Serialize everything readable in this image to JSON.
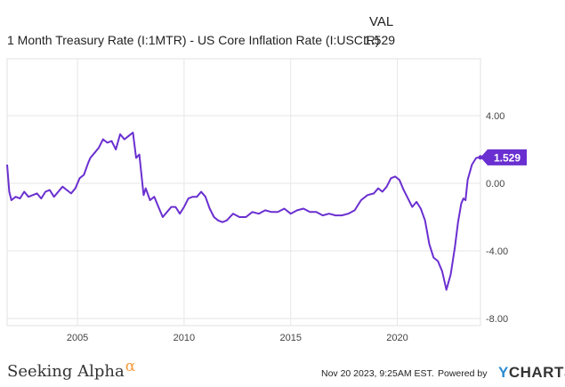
{
  "legend": {
    "header": "VAL",
    "series_name": "1 Month Treasury Rate (I:1MTR) - US Core Inflation Rate (I:USCIR)",
    "series_value": "1.529"
  },
  "colors": {
    "line": "#6a2fd0",
    "grid": "#e6e6e6",
    "axis_text": "#444444"
  },
  "chart_data": {
    "type": "line",
    "title": "1 Month Treasury Rate (I:1MTR) - US Core Inflation Rate (I:USCIR)",
    "xlabel": "",
    "ylabel": "",
    "xlim": [
      2001.7,
      2023.9
    ],
    "ylim": [
      -8,
      8
    ],
    "x_ticks": [
      2005,
      2010,
      2015,
      2020
    ],
    "x_tick_labels": [
      "2005",
      "2010",
      "2015",
      "2020"
    ],
    "y_ticks": [
      4,
      0,
      -4,
      -8
    ],
    "y_tick_labels": [
      "4.00",
      "0.00",
      "-4.00",
      "-8.00"
    ],
    "last_value_label": "1.529",
    "series": [
      {
        "name": "1 Month Treasury Rate (I:1MTR) - US Core Inflation Rate (I:USCIR)",
        "x": [
          2001.7,
          2001.8,
          2001.9,
          2002.1,
          2002.3,
          2002.5,
          2002.7,
          2002.9,
          2003.1,
          2003.3,
          2003.5,
          2003.7,
          2003.9,
          2004.1,
          2004.3,
          2004.5,
          2004.7,
          2004.9,
          2005.1,
          2005.3,
          2005.5,
          2005.6,
          2005.8,
          2006.0,
          2006.2,
          2006.4,
          2006.6,
          2006.8,
          2007.0,
          2007.2,
          2007.4,
          2007.6,
          2007.75,
          2007.9,
          2008.1,
          2008.2,
          2008.4,
          2008.6,
          2008.8,
          2009.0,
          2009.2,
          2009.4,
          2009.6,
          2009.8,
          2010.0,
          2010.2,
          2010.4,
          2010.6,
          2010.8,
          2011.0,
          2011.2,
          2011.4,
          2011.6,
          2011.8,
          2012.0,
          2012.3,
          2012.6,
          2012.9,
          2013.2,
          2013.5,
          2013.8,
          2014.1,
          2014.4,
          2014.7,
          2015.0,
          2015.3,
          2015.6,
          2015.9,
          2016.2,
          2016.5,
          2016.8,
          2017.1,
          2017.4,
          2017.7,
          2018.0,
          2018.3,
          2018.6,
          2018.9,
          2019.1,
          2019.3,
          2019.5,
          2019.7,
          2019.9,
          2020.1,
          2020.3,
          2020.5,
          2020.7,
          2020.9,
          2021.1,
          2021.3,
          2021.5,
          2021.7,
          2021.9,
          2022.1,
          2022.3,
          2022.5,
          2022.7,
          2022.85,
          2023.0,
          2023.1,
          2023.2,
          2023.3,
          2023.5,
          2023.7,
          2023.9
        ],
        "values": [
          1.1,
          -0.5,
          -1.0,
          -0.8,
          -0.9,
          -0.5,
          -0.8,
          -0.7,
          -0.6,
          -0.9,
          -0.5,
          -0.4,
          -0.8,
          -0.5,
          -0.2,
          -0.4,
          -0.6,
          -0.3,
          0.3,
          0.5,
          1.2,
          1.5,
          1.8,
          2.1,
          2.6,
          2.4,
          2.5,
          2.0,
          2.9,
          2.6,
          2.8,
          3.0,
          1.5,
          1.7,
          -0.7,
          -0.3,
          -1.0,
          -0.8,
          -1.4,
          -2.0,
          -1.7,
          -1.4,
          -1.4,
          -1.8,
          -1.4,
          -0.9,
          -0.8,
          -0.8,
          -0.5,
          -0.8,
          -1.5,
          -2.0,
          -2.2,
          -2.3,
          -2.2,
          -1.8,
          -2.0,
          -2.0,
          -1.7,
          -1.8,
          -1.6,
          -1.7,
          -1.7,
          -1.5,
          -1.8,
          -1.6,
          -1.5,
          -1.7,
          -1.7,
          -1.9,
          -1.8,
          -1.9,
          -1.9,
          -1.8,
          -1.6,
          -1.0,
          -0.7,
          -0.6,
          -0.3,
          -0.5,
          -0.2,
          0.3,
          0.4,
          0.2,
          -0.4,
          -0.9,
          -1.4,
          -1.1,
          -1.5,
          -2.2,
          -3.6,
          -4.4,
          -4.6,
          -5.2,
          -6.3,
          -5.4,
          -3.8,
          -2.3,
          -1.2,
          -0.9,
          -1.0,
          0.2,
          1.1,
          1.5,
          1.53
        ]
      }
    ]
  },
  "footer": {
    "brand": "Seeking Alpha",
    "brand_symbol": "α",
    "timestamp": "Nov 20 2023, 9:25AM EST.",
    "powered_by": "Powered by",
    "logo_y": "Y",
    "logo_rest": "CHARTS"
  }
}
